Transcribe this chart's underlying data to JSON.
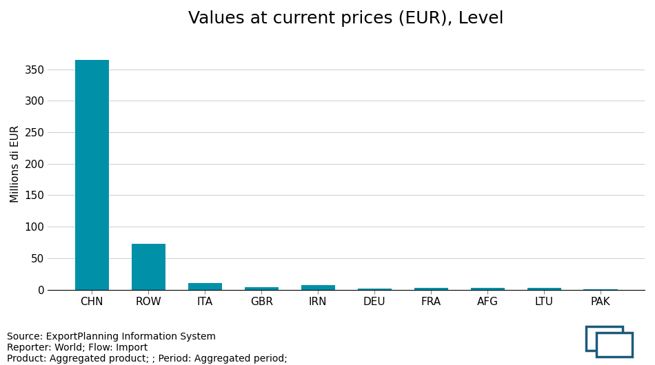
{
  "title": "Values at current prices (EUR), Level",
  "categories": [
    "CHN",
    "ROW",
    "ITA",
    "GBR",
    "IRN",
    "DEU",
    "FRA",
    "AFG",
    "LTU",
    "PAK"
  ],
  "values": [
    365,
    73,
    11,
    4.5,
    7,
    1.5,
    2.5,
    2.8,
    3.0,
    1.2
  ],
  "bar_color": "#0090a8",
  "ylabel": "Millions di EUR",
  "ylim": [
    0,
    400
  ],
  "yticks": [
    0,
    50,
    100,
    150,
    200,
    250,
    300,
    350
  ],
  "background_color": "#ffffff",
  "footnote_line1": "Source: ExportPlanning Information System",
  "footnote_line2": "Reporter: World; Flow: Import",
  "footnote_line3": "Product: Aggregated product; ; Period: Aggregated period;",
  "title_fontsize": 18,
  "label_fontsize": 11,
  "tick_fontsize": 11,
  "footnote_fontsize": 10
}
